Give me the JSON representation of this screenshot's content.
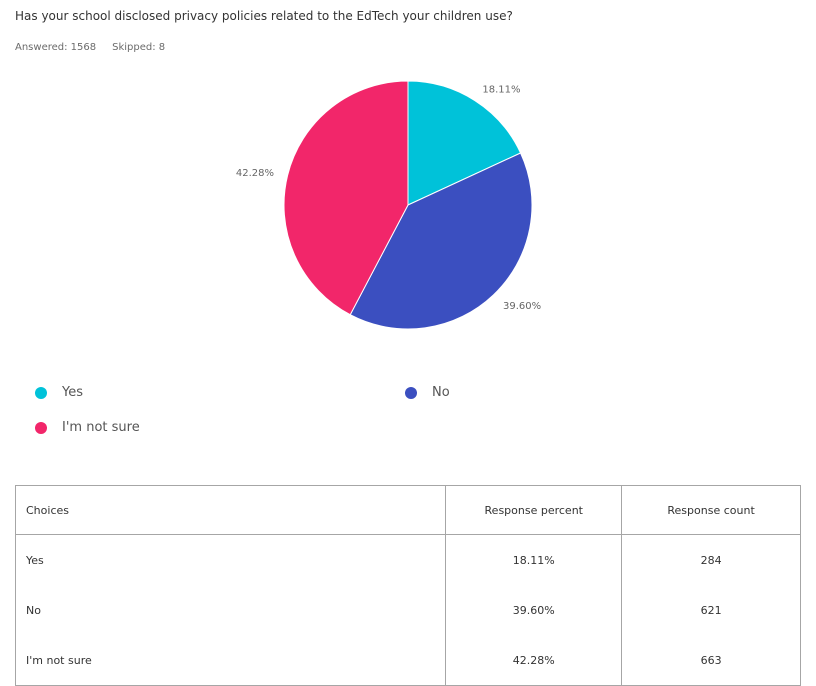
{
  "question": "Has your school disclosed privacy policies related to the EdTech your children use?",
  "answered": "Answered: 1568",
  "skipped": "Skipped: 8",
  "chart_data": {
    "type": "pie",
    "slices": [
      {
        "label": "Yes",
        "value": 18.11,
        "display": "18.11%",
        "color": "#00c2d9"
      },
      {
        "label": "No",
        "value": 39.6,
        "display": "39.60%",
        "color": "#3b4fc0"
      },
      {
        "label": "I'm not sure",
        "value": 42.28,
        "display": "42.28%",
        "color": "#f2266a"
      }
    ],
    "legend_placement": "bottom"
  },
  "legend": [
    {
      "label": "Yes",
      "color": "#00c2d9"
    },
    {
      "label": "No",
      "color": "#3b4fc0"
    },
    {
      "label": "I'm not sure",
      "color": "#f2266a"
    }
  ],
  "table": {
    "headers": [
      "Choices",
      "Response percent",
      "Response count"
    ],
    "rows": [
      {
        "choice": "Yes",
        "percent": "18.11%",
        "count": "284"
      },
      {
        "choice": "No",
        "percent": "39.60%",
        "count": "621"
      },
      {
        "choice": "I'm not sure",
        "percent": "42.28%",
        "count": "663"
      }
    ]
  }
}
